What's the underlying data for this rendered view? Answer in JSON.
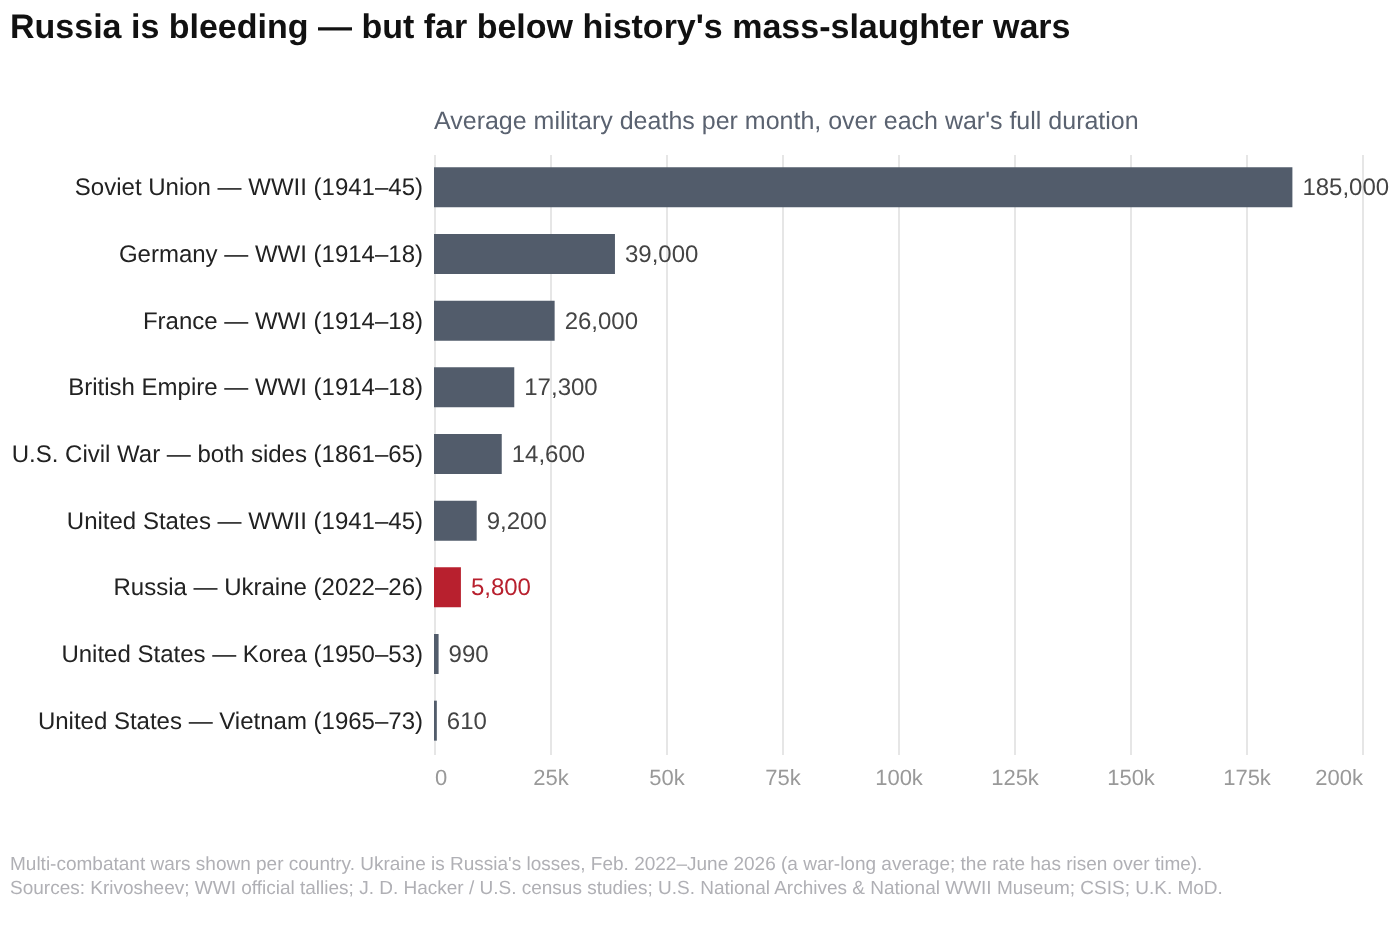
{
  "chart_data": {
    "type": "bar",
    "orientation": "horizontal",
    "title": "Russia is bleeding — but far below history's mass-slaughter wars",
    "subtitle": "Average military deaths per month, over each war's full duration",
    "categories": [
      "Soviet Union — WWII (1941–45)",
      "Germany — WWI (1914–18)",
      "France — WWI (1914–18)",
      "British Empire — WWI (1914–18)",
      "U.S. Civil War — both sides (1861–65)",
      "United States — WWII (1941–45)",
      "Russia — Ukraine (2022–26)",
      "United States — Korea (1950–53)",
      "United States — Vietnam (1965–73)"
    ],
    "values": [
      185000,
      39000,
      26000,
      17300,
      14600,
      9200,
      5800,
      990,
      610
    ],
    "colors": [
      "#525c6b",
      "#525c6b",
      "#525c6b",
      "#525c6b",
      "#525c6b",
      "#525c6b",
      "#b8202e",
      "#525c6b",
      "#525c6b"
    ],
    "value_labels": [
      "185,000",
      "39,000",
      "26,000",
      "17,300",
      "14,600",
      "9,200",
      "5,800",
      "990",
      "610"
    ],
    "xlim": [
      0,
      200000
    ],
    "xticks": [
      0,
      {
        "value": 25000,
        "label": "25k"
      },
      {
        "value": 50000,
        "label": "50k"
      },
      {
        "value": 75000,
        "label": "75k"
      },
      {
        "value": 100000,
        "label": "100k"
      },
      {
        "value": 125000,
        "label": "125k"
      },
      {
        "value": 150000,
        "label": "150k"
      },
      {
        "value": 175000,
        "label": "175k"
      },
      {
        "value": 200000,
        "label": "200k"
      }
    ],
    "grid": "x",
    "annotations": [
      "Multi-combatant wars shown per country. Ukraine is Russia's losses, Feb. 2022–June 2026 (a war-long average; the rate has risen over time).",
      "Sources: Krivosheev; WWI official tallies; J. D. Hacker / U.S. census studies; U.S. National Archives & National WWII Museum; CSIS; U.K. MoD."
    ]
  }
}
